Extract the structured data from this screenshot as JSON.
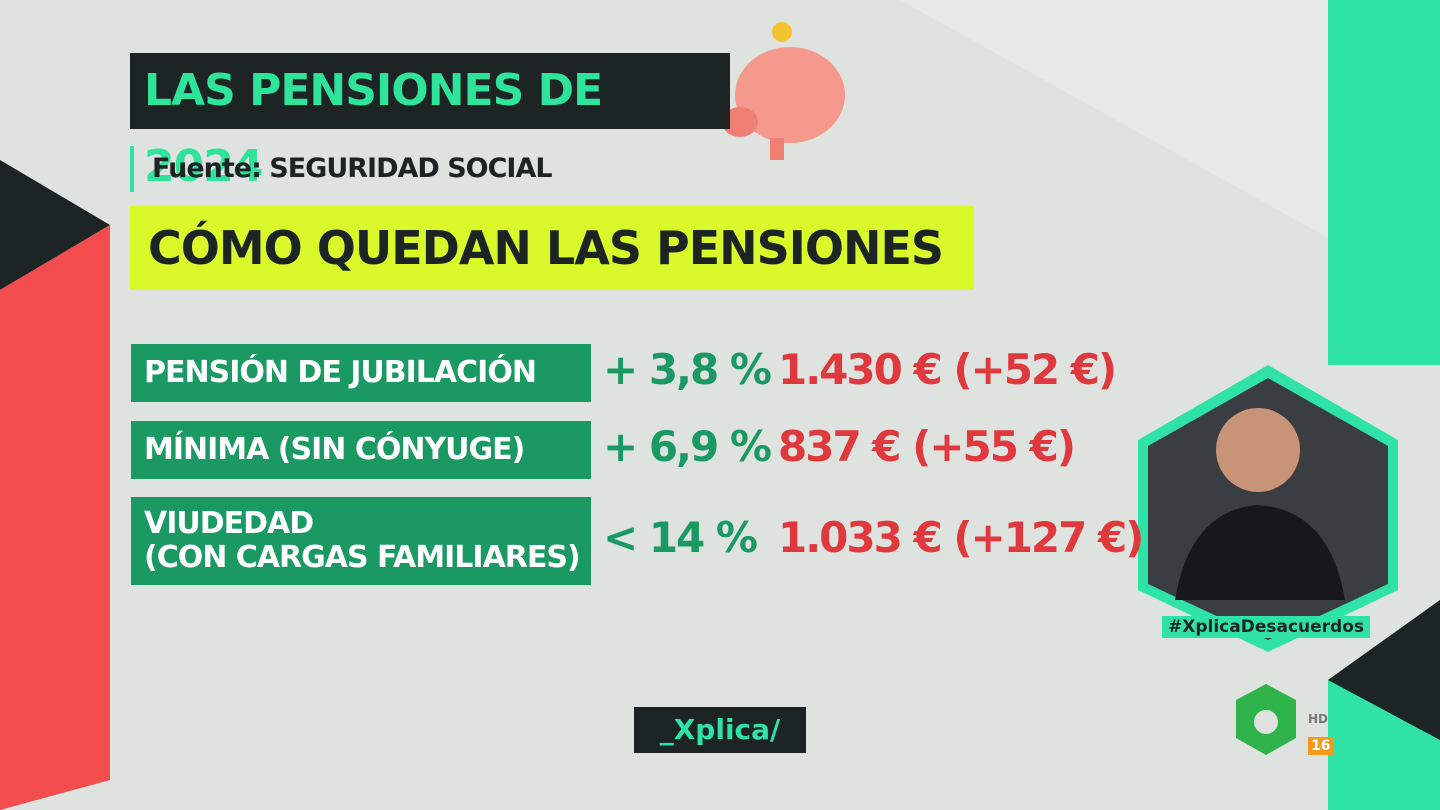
{
  "header": {
    "title": "LAS PENSIONES DE 2024",
    "source": "Fuente: SEGURIDAD SOCIAL",
    "subtitle": "CÓMO QUEDAN LAS PENSIONES"
  },
  "table": {
    "rows": [
      {
        "label": [
          "PENSIÓN DE JUBILACIÓN"
        ],
        "change": "+ 3,8 %",
        "amount": "1.430 € (+52 €)"
      },
      {
        "label": [
          "MÍNIMA (SIN CÓNYUGE)"
        ],
        "change": "+ 6,9 %",
        "amount": "837 € (+55 €)"
      },
      {
        "label": [
          "VIUDEDAD",
          "(CON CARGAS FAMILIARES)"
        ],
        "change": "< 14 %",
        "amount": "1.033 € (+127 €)"
      }
    ]
  },
  "hashtag": "#XplicaDesacuerdos",
  "program": "_Xplica/",
  "channel": {
    "hd": "HD",
    "rating": "16"
  }
}
